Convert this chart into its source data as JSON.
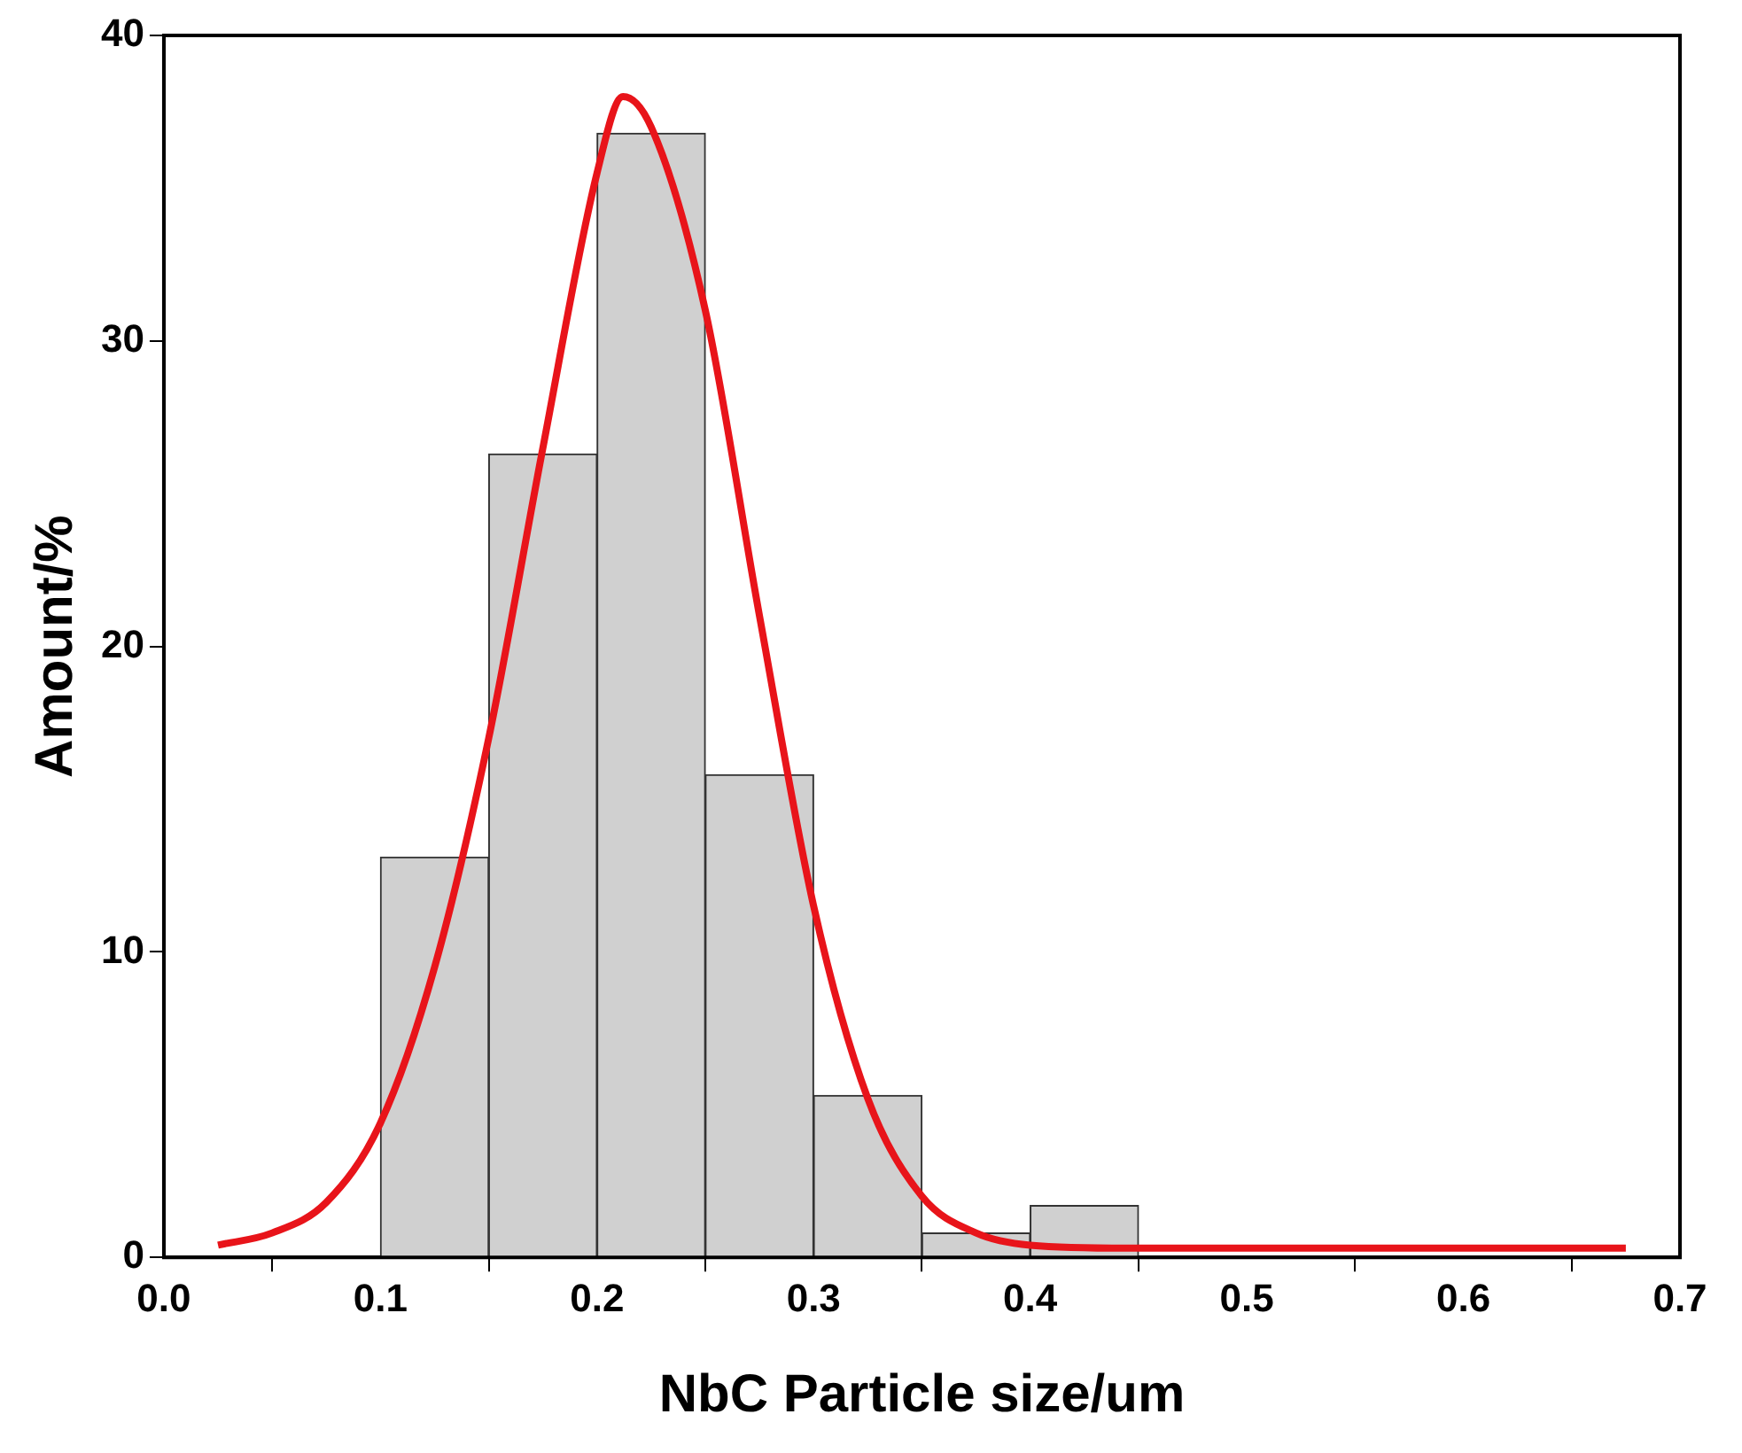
{
  "chart_data": {
    "type": "histogram",
    "xlabel": "NbC Particle size/um",
    "ylabel": "Amount/%",
    "bins": [
      0.1,
      0.15,
      0.2,
      0.25,
      0.3,
      0.35,
      0.4,
      0.45
    ],
    "values": [
      13.1,
      26.3,
      36.8,
      15.8,
      5.3,
      0.8,
      1.7
    ],
    "color": "#d0d0d0",
    "series": [
      {
        "type": "line",
        "color": "#e8141a",
        "x": [
          0.025,
          0.05,
          0.075,
          0.1,
          0.125,
          0.15,
          0.175,
          0.2,
          0.212,
          0.225,
          0.25,
          0.275,
          0.3,
          0.325,
          0.35,
          0.375,
          0.4,
          0.45,
          0.5,
          0.6,
          0.675
        ],
        "values": [
          0.4,
          0.8,
          1.8,
          4.4,
          9.5,
          17,
          26.5,
          35.5,
          38,
          37,
          31,
          21,
          11.5,
          5.2,
          2,
          0.8,
          0.4,
          0.3,
          0.3,
          0.3,
          0.3
        ]
      }
    ],
    "xlim": [
      0,
      0.7
    ],
    "xticks": [
      {
        "value": 0,
        "label": "0.0"
      },
      0.1,
      0.2,
      0.3,
      0.4,
      0.5,
      0.6,
      0.7
    ],
    "ylim": [
      0,
      40
    ],
    "yticks": [
      0,
      10,
      20,
      30,
      40
    ],
    "grid": false,
    "legend": false,
    "marker": "none",
    "line_style": "solid"
  }
}
